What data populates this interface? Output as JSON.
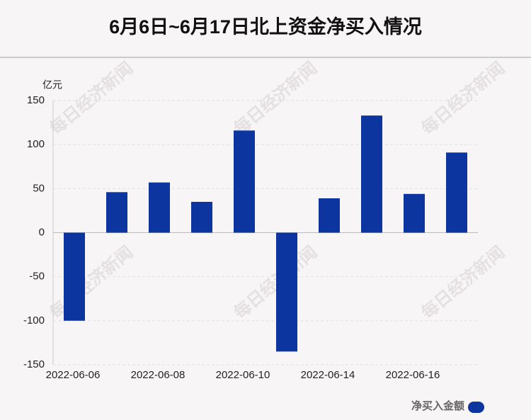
{
  "chart_data": {
    "type": "bar",
    "title": "6月6日~6月17日北上资金净买入情况",
    "y_unit": "亿元",
    "categories": [
      "2022-06-06",
      null,
      "2022-06-08",
      null,
      "2022-06-10",
      null,
      "2022-06-14",
      null,
      "2022-06-16",
      null
    ],
    "series": [
      {
        "name": "净买入金额",
        "color": "#0d35a0",
        "values": [
          -100,
          46,
          57,
          35,
          116,
          -135,
          39,
          133,
          44,
          91
        ]
      }
    ],
    "ylim": [
      -150,
      150
    ],
    "yticks": [
      -150,
      -100,
      -50,
      0,
      50,
      100,
      150
    ],
    "grid": true,
    "watermark": "每日经济新闻"
  }
}
